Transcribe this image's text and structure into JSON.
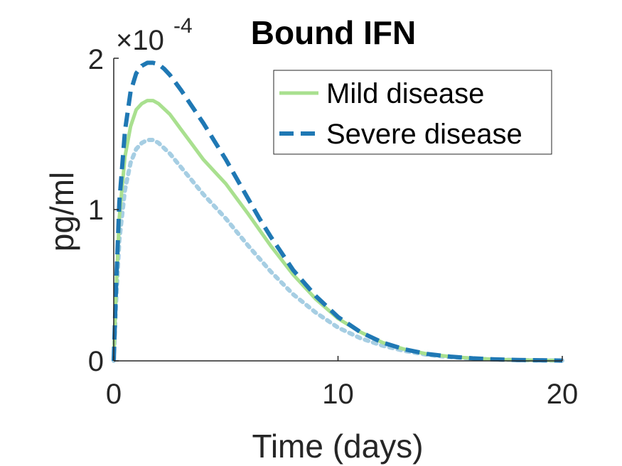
{
  "chart_data": {
    "type": "line",
    "title": "Bound IFN",
    "xlabel": "Time (days)",
    "ylabel": "pg/ml",
    "xlim": [
      0,
      20
    ],
    "ylim": [
      0,
      0.0002
    ],
    "x_ticks": [
      "0",
      "10",
      "20"
    ],
    "y_ticks": [
      "0",
      "1",
      "2"
    ],
    "y_exponent_base": "×10",
    "y_exponent_power": "-4",
    "grid": false,
    "legend_position": "top-right",
    "series": [
      {
        "name": "Mild disease",
        "color": "#a9e08f",
        "style": "solid",
        "x": [
          0,
          0.1,
          0.25,
          0.5,
          0.75,
          1.0,
          1.25,
          1.5,
          1.75,
          2.0,
          2.5,
          3,
          3.5,
          4,
          4.5,
          5,
          5.5,
          6,
          7,
          8,
          9,
          10,
          11,
          12,
          13,
          14,
          15,
          16,
          17,
          18,
          19,
          20
        ],
        "values": [
          0,
          4.5e-05,
          9.5e-05,
          0.000135,
          0.000155,
          0.000166,
          0.00017,
          0.000172,
          0.000172,
          0.00017,
          0.000163,
          0.000153,
          0.000143,
          0.000133,
          0.000125,
          0.000117,
          0.000107,
          9.7e-05,
          7.6e-05,
          5.7e-05,
          4.1e-05,
          2.8e-05,
          1.9e-05,
          1.2e-05,
          7.5e-06,
          4.5e-06,
          2.8e-06,
          1.7e-06,
          1e-06,
          6e-07,
          4e-07,
          2e-07
        ]
      },
      {
        "name": "Severe disease",
        "color": "#1f78b4",
        "style": "dashed",
        "x": [
          0,
          0.1,
          0.25,
          0.5,
          0.75,
          1.0,
          1.25,
          1.5,
          1.75,
          2.0,
          2.25,
          2.5,
          3,
          3.5,
          4,
          4.5,
          5,
          5.5,
          6,
          6.5,
          7,
          8,
          9,
          10,
          11,
          12,
          13,
          14,
          15,
          16,
          17,
          18,
          19,
          20
        ],
        "values": [
          0,
          4.8e-05,
          0.000105,
          0.000152,
          0.000178,
          0.00019,
          0.000195,
          0.000197,
          0.000197,
          0.000196,
          0.000193,
          0.000189,
          0.000179,
          0.000168,
          0.000157,
          0.000145,
          0.000133,
          0.00012,
          0.000107,
          9.4e-05,
          8.2e-05,
          6e-05,
          4.3e-05,
          2.9e-05,
          1.9e-05,
          1.2e-05,
          7.5e-06,
          4.5e-06,
          2.8e-06,
          1.7e-06,
          1e-06,
          6e-07,
          4e-07,
          2e-07
        ]
      },
      {
        "color": "#a6cee3",
        "style": "dotted",
        "x": [
          0,
          0.1,
          0.25,
          0.5,
          0.75,
          1.0,
          1.25,
          1.5,
          1.75,
          2.0,
          2.5,
          3,
          3.5,
          4,
          4.5,
          5,
          5.5,
          6,
          7,
          8,
          9,
          10,
          11,
          12,
          13,
          14,
          15,
          16,
          17,
          18,
          19,
          20
        ],
        "values": [
          0,
          3.8e-05,
          8e-05,
          0.000113,
          0.000131,
          0.00014,
          0.000144,
          0.000146,
          0.000146,
          0.000144,
          0.000137,
          0.000128,
          0.000119,
          0.00011,
          0.000102,
          9.4e-05,
          8.5e-05,
          7.6e-05,
          5.9e-05,
          4.4e-05,
          3.2e-05,
          2.2e-05,
          1.5e-05,
          1e-05,
          6.5e-06,
          4e-06,
          2.5e-06,
          1.5e-06,
          9e-07,
          5e-07,
          3e-07,
          2e-07
        ]
      }
    ]
  }
}
